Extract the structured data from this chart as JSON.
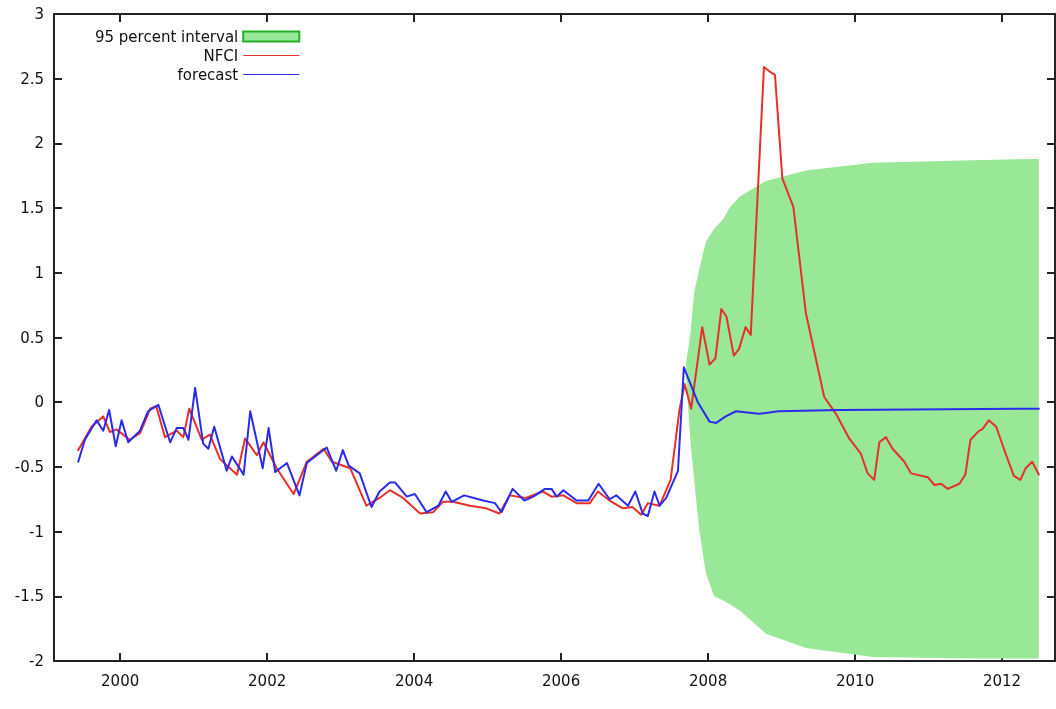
{
  "chart_data": {
    "type": "line",
    "xlim": [
      1999.1,
      2012.72
    ],
    "xticks": [
      2000,
      2002,
      2004,
      2006,
      2008,
      2010,
      2012
    ],
    "ylim": [
      -2,
      3
    ],
    "yticks": [
      -2,
      -1.5,
      -1,
      -0.5,
      0,
      0.5,
      1,
      1.5,
      2,
      2.5,
      3
    ],
    "grid": false,
    "legend": "top left",
    "marker": "none",
    "line_style": "solid",
    "series": [
      {
        "name": "95 percent interval",
        "type": "area",
        "color": "#98e898",
        "x": [
          2007.7,
          2007.76,
          2007.81,
          2007.88,
          2007.97,
          2008.08,
          2008.2,
          2008.29,
          2008.43,
          2008.79,
          2009.33,
          2010.24,
          2011.6,
          2012.5
        ],
        "values": [
          null,
          null,
          null,
          null,
          null,
          null,
          null,
          null,
          null,
          null,
          null,
          null,
          null,
          null
        ],
        "lower": [
          0.2,
          -0.3,
          -0.6,
          -0.99,
          -1.32,
          -1.5,
          -1.53,
          -1.56,
          -1.61,
          -1.79,
          -1.9,
          -1.97,
          -1.98,
          -1.98
        ],
        "upper": [
          0.3,
          0.53,
          0.85,
          1.03,
          1.24,
          1.34,
          1.41,
          1.5,
          1.59,
          1.71,
          1.79,
          1.85,
          1.87,
          1.88
        ]
      },
      {
        "name": "NFCI",
        "color": "#e8302a",
        "x": [
          1999.43,
          1999.52,
          1999.61,
          1999.77,
          1999.86,
          1999.95,
          2000.13,
          2000.27,
          2000.41,
          2000.49,
          2000.61,
          2000.77,
          2000.86,
          2000.94,
          2001.11,
          2001.22,
          2001.36,
          2001.59,
          2001.7,
          2001.86,
          2001.95,
          2002.13,
          2002.36,
          2002.54,
          2002.77,
          2002.88,
          2003.13,
          2003.35,
          2003.53,
          2003.67,
          2003.85,
          2004.08,
          2004.26,
          2004.39,
          2004.53,
          2004.76,
          2004.98,
          2005.16,
          2005.3,
          2005.52,
          2005.75,
          2005.87,
          2006.03,
          2006.21,
          2006.39,
          2006.5,
          2006.66,
          2006.84,
          2006.97,
          2007.09,
          2007.18,
          2007.34,
          2007.49,
          2007.61,
          2007.68,
          2007.77,
          2007.92,
          2008.02,
          2008.1,
          2008.18,
          2008.25,
          2008.35,
          2008.42,
          2008.51,
          2008.58,
          2008.76,
          2008.85,
          2008.91,
          2009.01,
          2009.16,
          2009.33,
          2009.58,
          2009.74,
          2009.92,
          2010.08,
          2010.17,
          2010.26,
          2010.33,
          2010.42,
          2010.51,
          2010.67,
          2010.76,
          2010.99,
          2011.08,
          2011.17,
          2011.26,
          2011.42,
          2011.5,
          2011.57,
          2011.69,
          2011.73,
          2011.82,
          2011.92,
          2012.05,
          2012.16,
          2012.25,
          2012.32,
          2012.41,
          2012.5
        ],
        "values": [
          -0.37,
          -0.28,
          -0.19,
          -0.11,
          -0.23,
          -0.21,
          -0.29,
          -0.24,
          -0.05,
          -0.03,
          -0.27,
          -0.22,
          -0.27,
          -0.05,
          -0.29,
          -0.25,
          -0.44,
          -0.56,
          -0.28,
          -0.41,
          -0.31,
          -0.51,
          -0.71,
          -0.46,
          -0.36,
          -0.46,
          -0.51,
          -0.8,
          -0.74,
          -0.68,
          -0.74,
          -0.86,
          -0.85,
          -0.77,
          -0.77,
          -0.8,
          -0.82,
          -0.86,
          -0.72,
          -0.74,
          -0.69,
          -0.73,
          -0.72,
          -0.78,
          -0.78,
          -0.69,
          -0.76,
          -0.82,
          -0.81,
          -0.87,
          -0.78,
          -0.8,
          -0.6,
          -0.06,
          0.14,
          -0.05,
          0.58,
          0.29,
          0.34,
          0.72,
          0.66,
          0.36,
          0.41,
          0.58,
          0.52,
          2.59,
          2.55,
          2.53,
          1.73,
          1.51,
          0.69,
          0.04,
          -0.09,
          -0.28,
          -0.4,
          -0.55,
          -0.6,
          -0.31,
          -0.27,
          -0.36,
          -0.46,
          -0.55,
          -0.58,
          -0.64,
          -0.63,
          -0.67,
          -0.63,
          -0.56,
          -0.29,
          -0.22,
          -0.21,
          -0.14,
          -0.19,
          -0.4,
          -0.57,
          -0.6,
          -0.51,
          -0.46,
          -0.56
        ]
      },
      {
        "name": "forecast",
        "color": "#2b2bea",
        "x": [
          1999.43,
          1999.52,
          1999.68,
          1999.77,
          1999.85,
          1999.94,
          2000.02,
          2000.11,
          2000.27,
          2000.38,
          2000.52,
          2000.68,
          2000.77,
          2000.86,
          2000.93,
          2001.02,
          2001.13,
          2001.2,
          2001.28,
          2001.45,
          2001.52,
          2001.68,
          2001.77,
          2001.94,
          2002.02,
          2002.11,
          2002.27,
          2002.44,
          2002.54,
          2002.81,
          2002.94,
          2003.03,
          2003.11,
          2003.26,
          2003.42,
          2003.53,
          2003.67,
          2003.74,
          2003.9,
          2004.01,
          2004.17,
          2004.33,
          2004.43,
          2004.51,
          2004.68,
          2004.94,
          2005.1,
          2005.19,
          2005.34,
          2005.5,
          2005.62,
          2005.78,
          2005.87,
          2005.94,
          2006.03,
          2006.21,
          2006.37,
          2006.51,
          2006.66,
          2006.75,
          2006.91,
          2007.01,
          2007.11,
          2007.18,
          2007.27,
          2007.34,
          2007.43,
          2007.59,
          2007.67,
          2007.86,
          2008.02,
          2008.11,
          2008.24,
          2008.38,
          2008.69,
          2008.96,
          2009.78,
          2012.5
        ],
        "values": [
          -0.46,
          -0.29,
          -0.14,
          -0.22,
          -0.06,
          -0.34,
          -0.14,
          -0.31,
          -0.22,
          -0.07,
          -0.02,
          -0.31,
          -0.2,
          -0.2,
          -0.29,
          0.11,
          -0.32,
          -0.36,
          -0.19,
          -0.53,
          -0.42,
          -0.56,
          -0.07,
          -0.51,
          -0.2,
          -0.54,
          -0.47,
          -0.72,
          -0.47,
          -0.35,
          -0.53,
          -0.37,
          -0.49,
          -0.55,
          -0.81,
          -0.69,
          -0.62,
          -0.62,
          -0.73,
          -0.71,
          -0.85,
          -0.8,
          -0.69,
          -0.77,
          -0.72,
          -0.76,
          -0.78,
          -0.85,
          -0.67,
          -0.76,
          -0.73,
          -0.67,
          -0.67,
          -0.73,
          -0.68,
          -0.76,
          -0.76,
          -0.63,
          -0.75,
          -0.72,
          -0.8,
          -0.69,
          -0.86,
          -0.88,
          -0.69,
          -0.8,
          -0.74,
          -0.53,
          0.27,
          0.0,
          -0.15,
          -0.16,
          -0.11,
          -0.07,
          -0.09,
          -0.07,
          -0.06,
          -0.05
        ]
      }
    ]
  }
}
